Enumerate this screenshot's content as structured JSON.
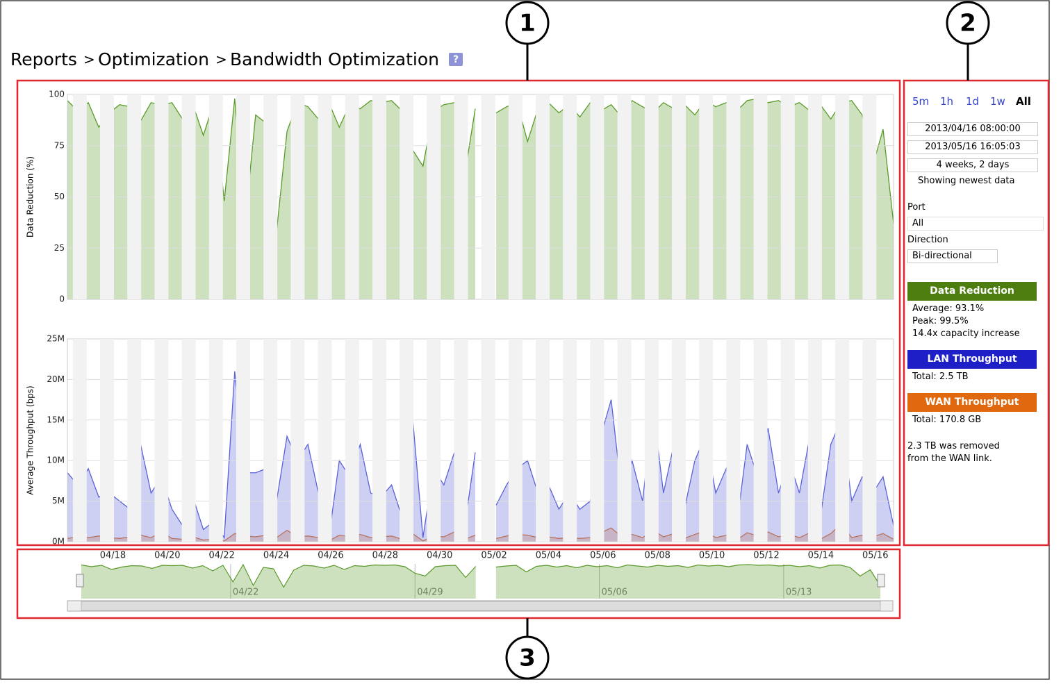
{
  "header": {
    "crumbs": [
      "Reports",
      "Optimization",
      "Bandwidth Optimization"
    ],
    "separator": ">",
    "help": "?"
  },
  "callouts": [
    "1",
    "2",
    "3"
  ],
  "charts": {
    "xlabels": [
      "04/18",
      "04/20",
      "04/22",
      "04/24",
      "04/26",
      "04/28",
      "04/30",
      "05/02",
      "05/04",
      "05/06",
      "05/08",
      "05/10",
      "05/12",
      "05/14",
      "05/16"
    ],
    "reduction": {
      "type": "area",
      "name": "Data Reduction",
      "ylabel": "Data Reduction (%)",
      "ylim": [
        0,
        100
      ],
      "yticks": [
        0,
        25,
        50,
        75,
        100
      ],
      "color": "#5b9a2a",
      "values": [
        97,
        92,
        96,
        84,
        91,
        95,
        94,
        87,
        96,
        95,
        96,
        88,
        95,
        80,
        96,
        48,
        98,
        38,
        90,
        86,
        33,
        82,
        96,
        94,
        88,
        96,
        84,
        95,
        93,
        97,
        96,
        97,
        92,
        73,
        65,
        92,
        95,
        96,
        61,
        93,
        null,
        91,
        94,
        96,
        77,
        93,
        96,
        91,
        95,
        89,
        96,
        92,
        95,
        89,
        97,
        94,
        91,
        96,
        93,
        95,
        90,
        97,
        94,
        96,
        92,
        97,
        98,
        96,
        97,
        94,
        96,
        92,
        95,
        88,
        96,
        97,
        90,
        65,
        83,
        37
      ]
    },
    "throughput": {
      "type": "area",
      "ylabel": "Average Throughput (bps)",
      "ylim": [
        0,
        25000000
      ],
      "yticks": [
        {
          "value": 0,
          "label": "0M"
        },
        {
          "value": 5000000,
          "label": "5M"
        },
        {
          "value": 10000000,
          "label": "10M"
        },
        {
          "value": 15000000,
          "label": "15M"
        },
        {
          "value": 20000000,
          "label": "20M"
        },
        {
          "value": 25000000,
          "label": "25M"
        }
      ],
      "series": [
        {
          "name": "LAN Throughput",
          "color": "#5a62d6",
          "values": [
            8500000,
            7000000,
            9000000,
            5500000,
            6000000,
            5000000,
            4000000,
            12000000,
            6000000,
            8000000,
            4000000,
            2000000,
            5500000,
            1500000,
            2500000,
            500000,
            21000000,
            8500000,
            8500000,
            9000000,
            5000000,
            13000000,
            10000000,
            12000000,
            6000000,
            500000,
            10000000,
            8000000,
            12000000,
            6000000,
            5500000,
            7000000,
            3000000,
            15500000,
            500000,
            9000000,
            7000000,
            11000000,
            2000000,
            11000000,
            null,
            4500000,
            7000000,
            9000000,
            10000000,
            6000000,
            7000000,
            4000000,
            6000000,
            4000000,
            5000000,
            13000000,
            17500000,
            6000000,
            10000000,
            5000000,
            16500000,
            6000000,
            12000000,
            4000000,
            10000000,
            13000000,
            6000000,
            9000000,
            2000000,
            12000000,
            8000000,
            14000000,
            6000000,
            10000000,
            6000000,
            13000000,
            3000000,
            12000000,
            15000000,
            5000000,
            8000000,
            6000000,
            8000000,
            2000000
          ]
        },
        {
          "name": "WAN Throughput",
          "color": "#e07b30",
          "values": [
            400000,
            600000,
            500000,
            700000,
            500000,
            400000,
            600000,
            800000,
            500000,
            1200000,
            400000,
            300000,
            600000,
            200000,
            300000,
            100000,
            1000000,
            700000,
            600000,
            800000,
            500000,
            1400000,
            600000,
            700000,
            500000,
            100000,
            800000,
            600000,
            900000,
            500000,
            600000,
            700000,
            300000,
            1000000,
            100000,
            700000,
            600000,
            1200000,
            300000,
            800000,
            null,
            400000,
            700000,
            900000,
            800000,
            500000,
            600000,
            400000,
            500000,
            400000,
            500000,
            1100000,
            1700000,
            600000,
            900000,
            500000,
            1400000,
            600000,
            1000000,
            400000,
            900000,
            1300000,
            500000,
            800000,
            200000,
            1100000,
            700000,
            1200000,
            600000,
            900000,
            500000,
            1100000,
            300000,
            1000000,
            2200000,
            500000,
            800000,
            600000,
            1000000,
            300000
          ]
        }
      ]
    },
    "navigator": {
      "labels": [
        "04/22",
        "04/29",
        "05/06",
        "05/13"
      ]
    }
  },
  "panel": {
    "ranges": [
      "5m",
      "1h",
      "1d",
      "1w",
      "All"
    ],
    "start": "2013/04/16 08:00:00",
    "end": "2013/05/16 16:05:03",
    "duration": "4 weeks, 2 days",
    "status": "Showing newest data",
    "port_label": "Port",
    "port": "All",
    "direction_label": "Direction",
    "direction": "Bi-directional",
    "reduction_stats": [
      "Average: 93.1%",
      "Peak: 99.5%",
      "14.4x capacity increase"
    ],
    "lan_total": "Total: 2.5 TB",
    "wan_total": "Total: 170.8 GB",
    "note": [
      "2.3 TB was removed",
      "from the WAN link."
    ]
  }
}
